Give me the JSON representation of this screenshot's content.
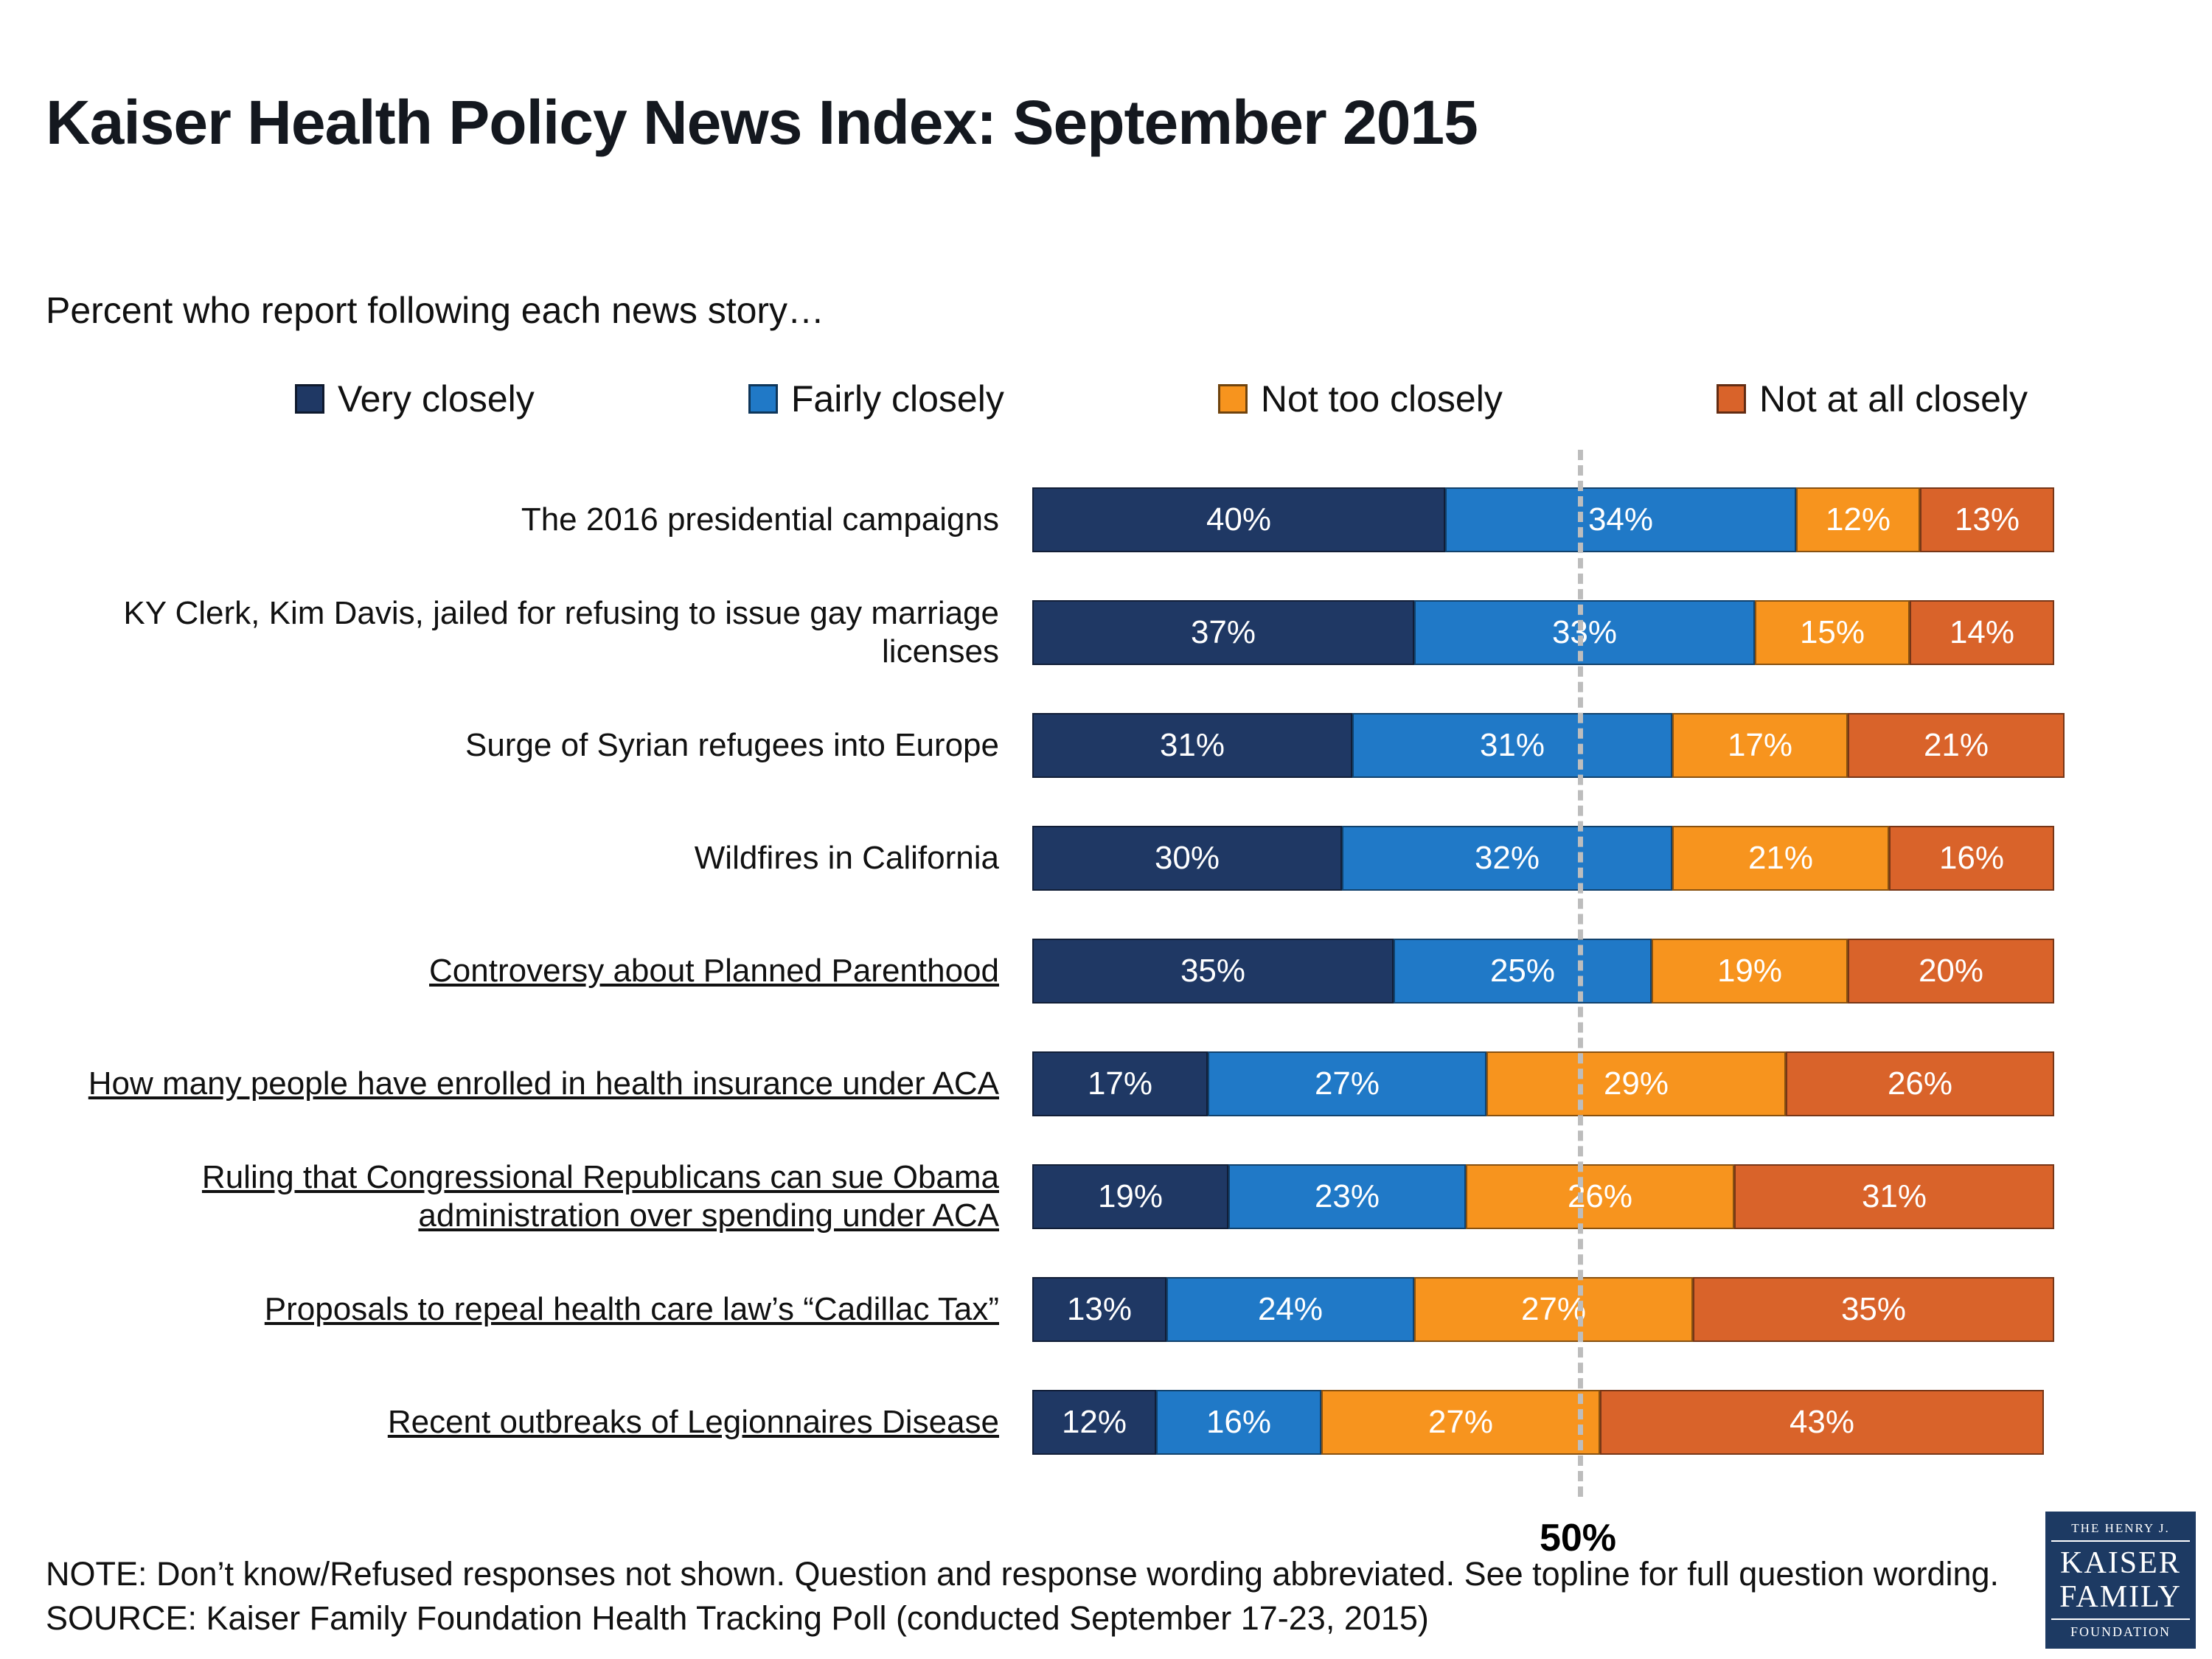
{
  "title": "Kaiser Health Policy News Index: September 2015",
  "subtitle": "Percent who report following each news story…",
  "chart_data": {
    "type": "bar",
    "orientation": "horizontal",
    "stacked": true,
    "x_max": 100,
    "unit": "percent",
    "grid": false,
    "legend_position": "top",
    "reference_line": {
      "value": 50,
      "label": "50%"
    },
    "series": [
      {
        "name": "Very closely",
        "color": "#1f3864"
      },
      {
        "name": "Fairly closely",
        "color": "#2079c7"
      },
      {
        "name": "Not too closely",
        "color": "#f7941e"
      },
      {
        "name": "Not at all closely",
        "color": "#d9632a"
      }
    ],
    "rows": [
      {
        "label": "The 2016 presidential campaigns",
        "underline": false,
        "values": [
          40,
          34,
          12,
          13
        ]
      },
      {
        "label": "KY Clerk, Kim Davis, jailed for refusing to issue gay marriage licenses",
        "underline": false,
        "values": [
          37,
          33,
          15,
          14
        ]
      },
      {
        "label": "Surge of Syrian refugees into Europe",
        "underline": false,
        "values": [
          31,
          31,
          17,
          21
        ]
      },
      {
        "label": "Wildfires in California",
        "underline": false,
        "values": [
          30,
          32,
          21,
          16
        ]
      },
      {
        "label": "Controversy about Planned Parenthood",
        "underline": true,
        "values": [
          35,
          25,
          19,
          20
        ]
      },
      {
        "label": "How many people have enrolled in health insurance under ACA",
        "underline": true,
        "values": [
          17,
          27,
          29,
          26
        ]
      },
      {
        "label": "Ruling that Congressional Republicans can sue Obama administration over spending under ACA",
        "underline": true,
        "values": [
          19,
          23,
          26,
          31
        ]
      },
      {
        "label": "Proposals to repeal health care law’s “Cadillac Tax”",
        "underline": true,
        "values": [
          13,
          24,
          27,
          35
        ]
      },
      {
        "label": "Recent outbreaks of Legionnaires Disease",
        "underline": true,
        "values": [
          12,
          16,
          27,
          43
        ]
      }
    ]
  },
  "note": "NOTE: Don’t know/Refused responses not shown. Question and response wording abbreviated.  See topline for full question wording.",
  "source": "SOURCE: Kaiser Family Foundation Health Tracking Poll (conducted September 17-23, 2015)",
  "logo": {
    "line1": "THE HENRY J.",
    "line2": "KAISER",
    "line3": "FAMILY",
    "line4": "FOUNDATION"
  }
}
